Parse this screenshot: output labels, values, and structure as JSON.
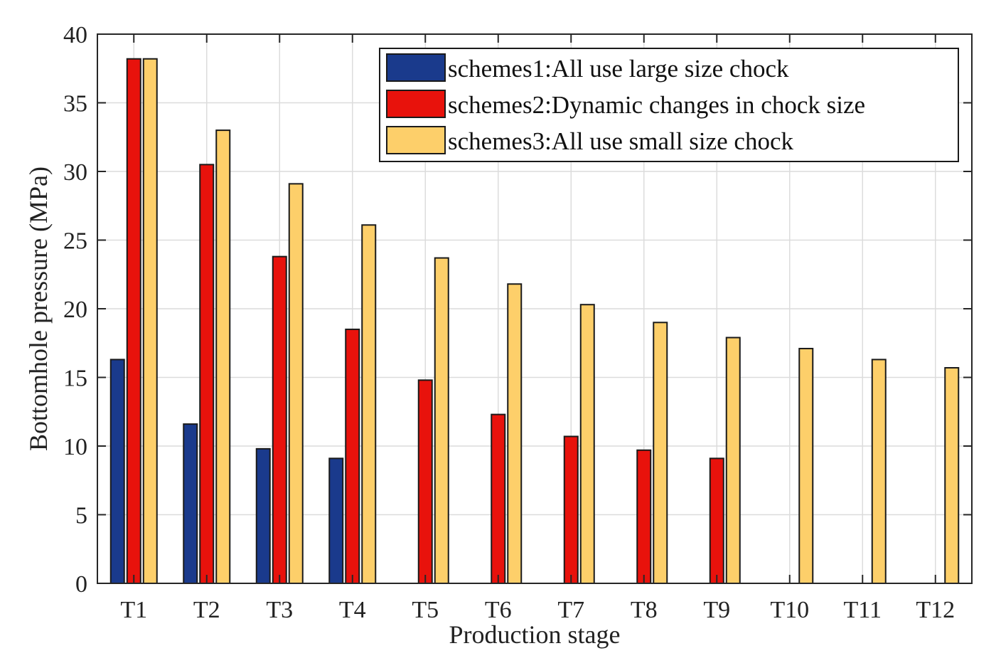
{
  "chart_data": {
    "type": "bar",
    "title": "",
    "xlabel": "Production stage",
    "ylabel": "Bottomhole pressure (MPa)",
    "ylim": [
      0,
      40
    ],
    "yticks": [
      0,
      5,
      10,
      15,
      20,
      25,
      30,
      35,
      40
    ],
    "grid": true,
    "legend_position": "top-right",
    "categories": [
      "T1",
      "T2",
      "T3",
      "T4",
      "T5",
      "T6",
      "T7",
      "T8",
      "T9",
      "T10",
      "T11",
      "T12"
    ],
    "series": [
      {
        "name": "schemes1:All use large size chock",
        "color": "#1a3a8c",
        "values": [
          16.3,
          11.6,
          9.8,
          9.1,
          null,
          null,
          null,
          null,
          null,
          null,
          null,
          null
        ]
      },
      {
        "name": "schemes2:Dynamic changes in chock size",
        "color": "#e8120c",
        "values": [
          38.2,
          30.5,
          23.8,
          18.5,
          14.8,
          12.3,
          10.7,
          9.7,
          9.1,
          null,
          null,
          null
        ]
      },
      {
        "name": "schemes3:All use small size chock",
        "color": "#fdcf6a",
        "values": [
          38.2,
          33.0,
          29.1,
          26.1,
          23.7,
          21.8,
          20.3,
          19.0,
          17.9,
          17.1,
          16.3,
          15.7
        ]
      }
    ]
  }
}
